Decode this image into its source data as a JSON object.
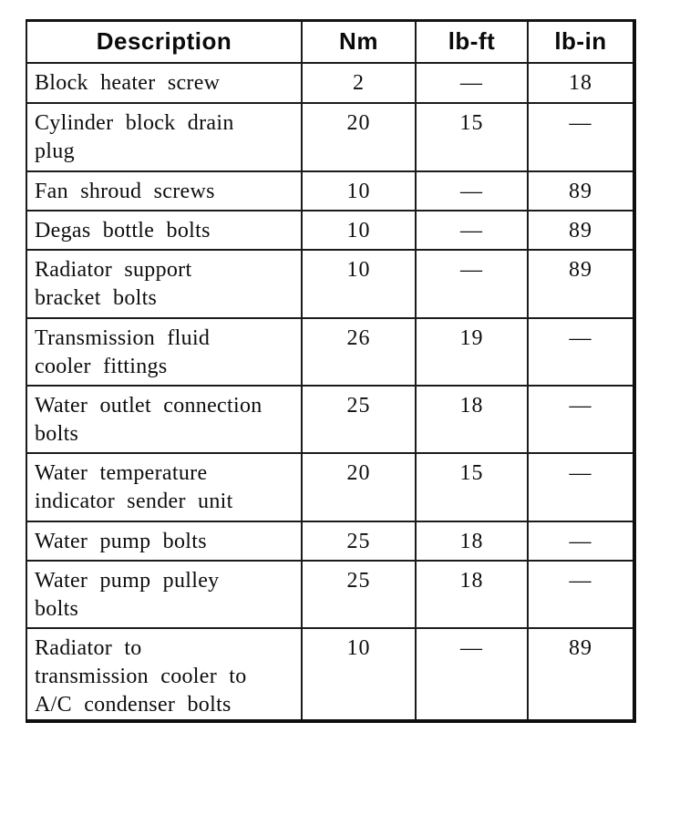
{
  "table": {
    "headers": [
      "Description",
      "Nm",
      "lb-ft",
      "lb-in"
    ],
    "rows": [
      {
        "description": "Block heater screw",
        "nm": "2",
        "lb_ft": "—",
        "lb_in": "18"
      },
      {
        "description": "Cylinder block drain\nplug",
        "nm": "20",
        "lb_ft": "15",
        "lb_in": "—"
      },
      {
        "description": "Fan shroud screws",
        "nm": "10",
        "lb_ft": "—",
        "lb_in": "89"
      },
      {
        "description": "Degas bottle bolts",
        "nm": "10",
        "lb_ft": "—",
        "lb_in": "89"
      },
      {
        "description": "Radiator support\nbracket bolts",
        "nm": "10",
        "lb_ft": "—",
        "lb_in": "89"
      },
      {
        "description": "Transmission fluid\ncooler fittings",
        "nm": "26",
        "lb_ft": "19",
        "lb_in": "—"
      },
      {
        "description": "Water outlet connection\nbolts",
        "nm": "25",
        "lb_ft": "18",
        "lb_in": "—"
      },
      {
        "description": "Water temperature\nindicator sender unit",
        "nm": "20",
        "lb_ft": "15",
        "lb_in": "—"
      },
      {
        "description": "Water pump bolts",
        "nm": "25",
        "lb_ft": "18",
        "lb_in": "—"
      },
      {
        "description": "Water pump pulley\nbolts",
        "nm": "25",
        "lb_ft": "18",
        "lb_in": "—"
      },
      {
        "description": "Radiator to\ntransmission cooler to\nA/C condenser bolts",
        "nm": "10",
        "lb_ft": "—",
        "lb_in": "89"
      }
    ],
    "colors": {
      "ink": "#0e0e0e",
      "rule": "#1b1b1b",
      "paper": "#ffffff"
    }
  }
}
